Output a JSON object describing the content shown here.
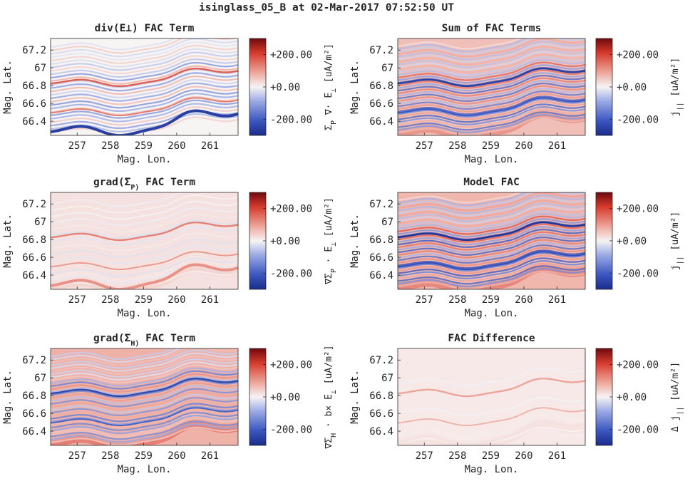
{
  "figure": {
    "suptitle": "isinglass_05_B at 02-Mar-2017 07:52:50 UT"
  },
  "chart_data": [
    {
      "type": "heatmap",
      "title": "div(E⊥) FAC Term",
      "xlabel": "Mag. Lon.",
      "ylabel": "Mag. Lat.",
      "xlim": [
        256.2,
        261.85
      ],
      "ylim": [
        66.24,
        67.33
      ],
      "xticks": [
        "257",
        "258",
        "259",
        "260",
        "261"
      ],
      "yticks": [
        "67.2",
        "67",
        "66.8",
        "66.6",
        "66.4"
      ],
      "colorbar": {
        "label": "Σ_P ∇· E_⊥ [uA/m²]",
        "ticks": [
          "+200.00",
          "+0.00",
          "-200.00"
        ],
        "range": [
          -300,
          300
        ],
        "colormap": "blue-white-red"
      },
      "pattern": {
        "n_lines": 26,
        "contrast": 0.55,
        "arc_value": 170,
        "bottom_band": -260,
        "broad_low": 0
      }
    },
    {
      "type": "heatmap",
      "title": "Sum of FAC Terms",
      "xlabel": "Mag. Lon.",
      "ylabel": "Mag. Lat.",
      "xlim": [
        256.2,
        261.85
      ],
      "ylim": [
        66.24,
        67.33
      ],
      "xticks": [
        "257",
        "258",
        "259",
        "260",
        "261"
      ],
      "yticks": [
        "67.2",
        "67",
        "66.8",
        "66.6",
        "66.4"
      ],
      "colorbar": {
        "label": "j_|| [uA/m²]",
        "ticks": [
          "+200.00",
          "+0.00",
          "-200.00"
        ],
        "range": [
          -300,
          300
        ],
        "colormap": "blue-white-red"
      },
      "pattern": {
        "n_lines": 34,
        "contrast": 0.9,
        "arc_value": -260,
        "bottom_band": 0,
        "broad_low": 120
      }
    },
    {
      "type": "heatmap",
      "title": "grad(Σ_P) FAC Term",
      "xlabel": "Mag. Lon.",
      "ylabel": "Mag. Lat.",
      "xlim": [
        256.2,
        261.85
      ],
      "ylim": [
        66.24,
        67.33
      ],
      "xticks": [
        "257",
        "258",
        "259",
        "260",
        "261"
      ],
      "yticks": [
        "67.2",
        "67",
        "66.8",
        "66.6",
        "66.4"
      ],
      "colorbar": {
        "label": "∇Σ_P · E_⊥ [uA/m²]",
        "ticks": [
          "+200.00",
          "+0.00",
          "-200.00"
        ],
        "range": [
          -300,
          300
        ],
        "colormap": "blue-white-red"
      },
      "pattern": {
        "n_lines": 14,
        "contrast": 0.12,
        "arc_value": 130,
        "bottom_band": 110,
        "broad_low": 40
      }
    },
    {
      "type": "heatmap",
      "title": "Model FAC",
      "xlabel": "Mag. Lon.",
      "ylabel": "Mag. Lat.",
      "xlim": [
        256.2,
        261.85
      ],
      "ylim": [
        66.24,
        67.33
      ],
      "xticks": [
        "257",
        "258",
        "259",
        "260",
        "261"
      ],
      "yticks": [
        "67.2",
        "67",
        "66.8",
        "66.6",
        "66.4"
      ],
      "colorbar": {
        "label": "j_|| [uA/m²]",
        "ticks": [
          "+200.00",
          "+0.00",
          "-200.00"
        ],
        "range": [
          -300,
          300
        ],
        "colormap": "blue-white-red"
      },
      "pattern": {
        "n_lines": 34,
        "contrast": 1.0,
        "arc_value": -280,
        "bottom_band": 0,
        "broad_low": 140
      }
    },
    {
      "type": "heatmap",
      "title": "grad(Σ_H) FAC Term",
      "xlabel": "Mag. Lon.",
      "ylabel": "Mag. Lat.",
      "xlim": [
        256.2,
        261.85
      ],
      "ylim": [
        66.24,
        67.33
      ],
      "xticks": [
        "257",
        "258",
        "259",
        "260",
        "261"
      ],
      "yticks": [
        "67.2",
        "67",
        "66.8",
        "66.6",
        "66.4"
      ],
      "colorbar": {
        "label": "∇Σ_H · b× E_⊥ [uA/m²]",
        "ticks": [
          "+200.00",
          "+0.00",
          "-200.00"
        ],
        "range": [
          -300,
          300
        ],
        "colormap": "blue-white-red"
      },
      "pattern": {
        "n_lines": 30,
        "contrast": 0.7,
        "arc_value": -240,
        "bottom_band": 0,
        "broad_low": 150
      }
    },
    {
      "type": "heatmap",
      "title": "FAC Difference",
      "xlabel": "Mag. Lon.",
      "ylabel": "Mag. Lat.",
      "xlim": [
        256.2,
        261.85
      ],
      "ylim": [
        66.24,
        67.33
      ],
      "xticks": [
        "257",
        "258",
        "259",
        "260",
        "261"
      ],
      "yticks": [
        "67.2",
        "67",
        "66.8",
        "66.6",
        "66.4"
      ],
      "colorbar": {
        "label": "Δ j_|| [uA/m²]",
        "ticks": [
          "+200.00",
          "+0.00",
          "-200.00"
        ],
        "range": [
          -300,
          300
        ],
        "colormap": "blue-white-red"
      },
      "pattern": {
        "n_lines": 3,
        "contrast": 0.03,
        "arc_value": 90,
        "bottom_band": 20,
        "broad_low": 25
      }
    }
  ]
}
